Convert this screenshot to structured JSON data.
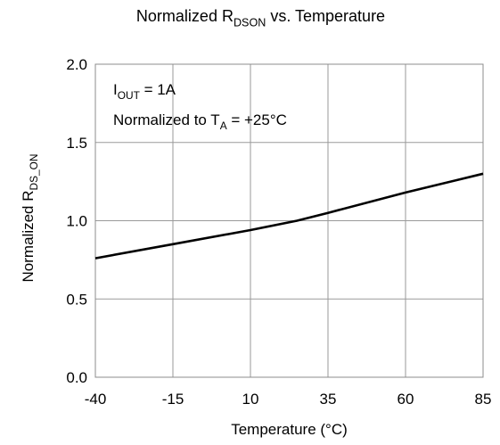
{
  "chart_data": {
    "type": "line",
    "title": {
      "parts": [
        {
          "text": "Normalized R",
          "role": "base"
        },
        {
          "text": "DSON",
          "role": "sub"
        },
        {
          "text": " vs. Temperature",
          "role": "base"
        }
      ]
    },
    "xlabel": "Temperature (°C)",
    "ylabel": {
      "parts": [
        {
          "text": "Normalized R",
          "role": "base"
        },
        {
          "text": "DS_ON",
          "role": "sub"
        }
      ]
    },
    "xlim": [
      -40,
      85
    ],
    "ylim": [
      0,
      2
    ],
    "x_ticks": [
      -40,
      -15,
      10,
      35,
      60,
      85
    ],
    "x_tick_labels": [
      "-40",
      "-15",
      "10",
      "35",
      "60",
      "85"
    ],
    "y_ticks": [
      0,
      0.5,
      1,
      1.5,
      2
    ],
    "y_tick_labels": [
      "0.0",
      "0.5",
      "1.0",
      "1.5",
      "2.0"
    ],
    "grid": true,
    "annotations": [
      {
        "parts": [
          {
            "text": "I",
            "role": "base"
          },
          {
            "text": "OUT",
            "role": "sub"
          },
          {
            "text": " = 1A",
            "role": "base"
          }
        ]
      },
      {
        "parts": [
          {
            "text": "Normalized to T",
            "role": "base"
          },
          {
            "text": "A",
            "role": "sub"
          },
          {
            "text": " = +25°C",
            "role": "base"
          }
        ]
      }
    ],
    "series": [
      {
        "x": [
          -40,
          -15,
          10,
          25,
          35,
          60,
          85
        ],
        "y": [
          0.76,
          0.85,
          0.94,
          1.0,
          1.05,
          1.18,
          1.3
        ]
      }
    ],
    "colors": {
      "line": "#000000",
      "grid": "#9a9a9a",
      "frame": "#8c8c8c"
    }
  }
}
